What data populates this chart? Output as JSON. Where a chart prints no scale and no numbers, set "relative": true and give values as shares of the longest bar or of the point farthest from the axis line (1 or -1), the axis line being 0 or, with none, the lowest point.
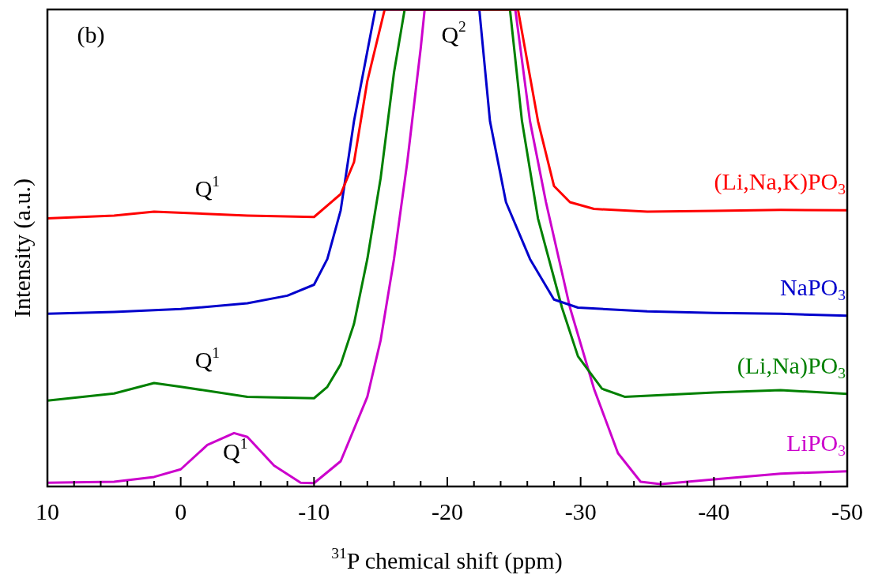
{
  "chart_data": {
    "type": "line",
    "relative": true,
    "xlabel": "$^{31}$P chemical shift (ppm)",
    "ylabel": "Intensity (a.u.)",
    "xlim": [
      10,
      -50
    ],
    "xticks": [
      10,
      {
        "value": 8,
        "label": null
      },
      {
        "value": 6,
        "label": null
      },
      {
        "value": 4,
        "label": null
      },
      {
        "value": 2,
        "label": null
      },
      0,
      {
        "value": -2,
        "label": null
      },
      {
        "value": -4,
        "label": null
      },
      {
        "value": -6,
        "label": null
      },
      {
        "value": -8,
        "label": null
      },
      -10,
      {
        "value": -12,
        "label": null
      },
      {
        "value": -14,
        "label": null
      },
      {
        "value": -16,
        "label": null
      },
      {
        "value": -18,
        "label": null
      },
      -20,
      {
        "value": -22,
        "label": null
      },
      {
        "value": -24,
        "label": null
      },
      {
        "value": -26,
        "label": null
      },
      {
        "value": -28,
        "label": null
      },
      -30,
      {
        "value": -32,
        "label": null
      },
      {
        "value": -34,
        "label": null
      },
      {
        "value": -36,
        "label": null
      },
      {
        "value": -38,
        "label": null
      },
      -40,
      {
        "value": -42,
        "label": null
      },
      {
        "value": -44,
        "label": null
      },
      {
        "value": -46,
        "label": null
      },
      {
        "value": -48,
        "label": null
      },
      -50
    ],
    "grid": false,
    "legend": false,
    "marker": "none",
    "line_style": "solid",
    "series": [
      {
        "name": "(Li,Na,K)PO$_{3}$",
        "color": "#ff0000",
        "x": [
          10,
          5,
          2,
          -5,
          -10,
          -12,
          -13,
          -14,
          -15.3,
          -25.3,
          -26.8,
          -28,
          -29.2,
          -31,
          -35,
          -40,
          -45,
          -50
        ],
        "values": [
          0.562,
          0.568,
          0.576,
          0.568,
          0.565,
          0.613,
          0.68,
          0.85,
          1,
          1,
          0.766,
          0.63,
          0.596,
          0.582,
          0.576,
          0.578,
          0.58,
          0.579
        ]
      },
      {
        "name": "NaPO$_{3}$",
        "color": "#0000cc",
        "x": [
          10,
          5,
          0,
          -5,
          -8,
          -10,
          -11,
          -12,
          -13,
          -14.6,
          -22.4,
          -23.2,
          -24.4,
          -26.2,
          -28,
          -29.8,
          -35,
          -40,
          -45,
          -50
        ],
        "values": [
          0.362,
          0.366,
          0.372,
          0.384,
          0.4,
          0.423,
          0.477,
          0.579,
          0.766,
          1,
          1,
          0.766,
          0.596,
          0.477,
          0.392,
          0.375,
          0.367,
          0.364,
          0.362,
          0.358
        ]
      },
      {
        "name": "(Li,Na)PO$_{3}$",
        "color": "#008000",
        "x": [
          10,
          5,
          2,
          0,
          -5,
          -10,
          -11,
          -12,
          -13,
          -14,
          -15,
          -16,
          -16.8,
          -24.7,
          -25.6,
          -26.8,
          -28.6,
          -29.8,
          -31.6,
          -33.3,
          -40,
          -45,
          -50
        ],
        "values": [
          0.18,
          0.195,
          0.217,
          0.209,
          0.188,
          0.185,
          0.209,
          0.256,
          0.341,
          0.477,
          0.647,
          0.868,
          1,
          1,
          0.766,
          0.562,
          0.375,
          0.273,
          0.205,
          0.188,
          0.197,
          0.202,
          0.194
        ]
      },
      {
        "name": "LiPO$_{3}$",
        "color": "#cc00cc",
        "x": [
          10,
          5,
          2,
          0,
          -2,
          -4,
          -5,
          -7,
          -9,
          -10,
          -12,
          -14,
          -15,
          -16,
          -17,
          -18,
          -18.3,
          -25.1,
          -26.2,
          -27.4,
          -29.2,
          -31,
          -32.8,
          -34.5,
          -36,
          -40,
          -45,
          -50
        ],
        "values": [
          0.008,
          0.01,
          0.02,
          0.036,
          0.087,
          0.112,
          0.104,
          0.044,
          0.008,
          0.007,
          0.053,
          0.188,
          0.307,
          0.477,
          0.681,
          0.918,
          1,
          1,
          0.766,
          0.596,
          0.375,
          0.205,
          0.07,
          0.01,
          0.005,
          0.015,
          0.027,
          0.032
        ]
      }
    ],
    "annotations": [
      "(b)",
      "Q$^{1}$",
      "Q$^{1}$",
      "Q$^{1}$",
      "Q$^{2}$"
    ]
  }
}
